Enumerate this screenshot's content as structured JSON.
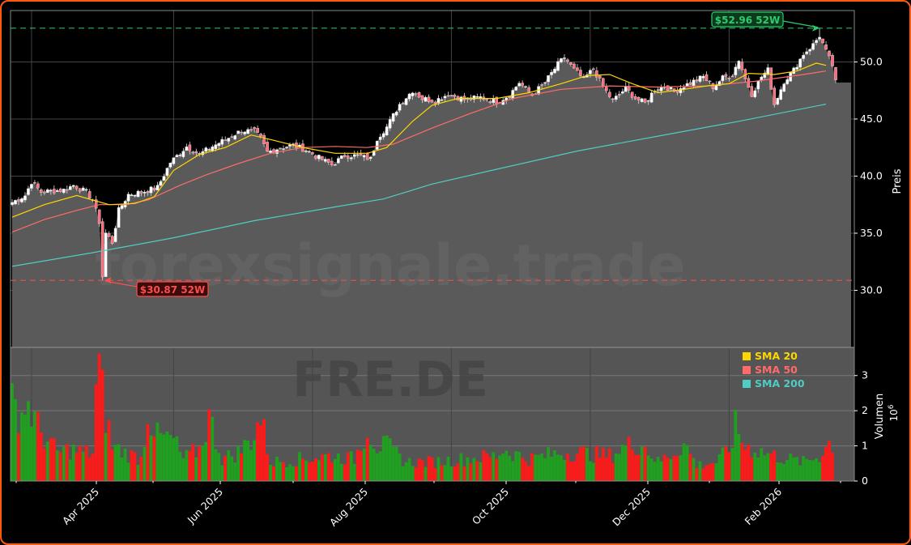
{
  "chart_data": {
    "type": "candlestick",
    "watermark": "forexsignale.trade",
    "ticker_watermark": "FRE.DE",
    "ylabel": "Preis",
    "volume_label": "Volumen",
    "volume_exponent": "10",
    "volume_exponent_power": "6",
    "price_ylim": [
      25.0,
      54.5
    ],
    "price_ticks": [
      "30.0",
      "35.0",
      "40.0",
      "45.0",
      "50.0"
    ],
    "volume_ylim": [
      0,
      3.8
    ],
    "volume_ticks": [
      "0",
      "1",
      "2",
      "3"
    ],
    "x_ticks": [
      "Apr 2025",
      "Jun 2025",
      "Aug 2025",
      "Oct 2025",
      "Dec 2025",
      "Feb 2026"
    ],
    "legend": [
      {
        "label": "SMA 20",
        "color": "#ffd700"
      },
      {
        "label": "SMA 50",
        "color": "#ff6b6b"
      },
      {
        "label": "SMA 200",
        "color": "#4ecdc4"
      }
    ],
    "annotations": {
      "high": {
        "label": "$52.96 52W",
        "value": 52.96
      },
      "low": {
        "label": "$30.87 52W",
        "value": 30.87
      }
    },
    "last_price": 48.2,
    "colors": {
      "up": "#1fa01f",
      "down": "#ff1a1a",
      "grid": "#444444",
      "area": "#5a5a5a",
      "high": "#2ecc71",
      "low": "#ff4d4d"
    },
    "grid": true,
    "legend_position": "upper right of volume panel",
    "price_anchors": [
      [
        0,
        37.7
      ],
      [
        4,
        38.3
      ],
      [
        6,
        39.5
      ],
      [
        9,
        38.6
      ],
      [
        12,
        38.7
      ],
      [
        16,
        38.8
      ],
      [
        19,
        39.2
      ],
      [
        23,
        38.6
      ],
      [
        25,
        37.9
      ],
      [
        27,
        36.0
      ],
      [
        28,
        30.9
      ],
      [
        29,
        35.0
      ],
      [
        31,
        34.2
      ],
      [
        33,
        37.0
      ],
      [
        36,
        38.4
      ],
      [
        40,
        38.6
      ],
      [
        45,
        39.0
      ],
      [
        49,
        41.2
      ],
      [
        54,
        42.6
      ],
      [
        58,
        41.9
      ],
      [
        62,
        42.6
      ],
      [
        66,
        43.2
      ],
      [
        71,
        44.0
      ],
      [
        75,
        43.9
      ],
      [
        77,
        43.3
      ],
      [
        79,
        42.1
      ],
      [
        83,
        42.5
      ],
      [
        87,
        42.7
      ],
      [
        91,
        42.3
      ],
      [
        95,
        41.6
      ],
      [
        99,
        41.0
      ],
      [
        103,
        41.8
      ],
      [
        107,
        41.8
      ],
      [
        111,
        41.5
      ],
      [
        113,
        43.3
      ],
      [
        116,
        44.3
      ],
      [
        120,
        46.3
      ],
      [
        124,
        47.5
      ],
      [
        127,
        46.8
      ],
      [
        131,
        46.6
      ],
      [
        135,
        47.2
      ],
      [
        140,
        46.7
      ],
      [
        145,
        46.9
      ],
      [
        150,
        46.5
      ],
      [
        154,
        47.1
      ],
      [
        157,
        48.2
      ],
      [
        161,
        47.1
      ],
      [
        165,
        48.2
      ],
      [
        169,
        49.8
      ],
      [
        171,
        50.4
      ],
      [
        174,
        49.3
      ],
      [
        177,
        48.5
      ],
      [
        180,
        49.4
      ],
      [
        183,
        47.8
      ],
      [
        186,
        46.6
      ],
      [
        190,
        47.7
      ],
      [
        193,
        46.8
      ],
      [
        196,
        46.4
      ],
      [
        199,
        47.6
      ],
      [
        202,
        47.9
      ],
      [
        205,
        47.4
      ],
      [
        208,
        47.9
      ],
      [
        211,
        48.3
      ],
      [
        214,
        48.7
      ],
      [
        217,
        47.8
      ],
      [
        220,
        48.6
      ],
      [
        223,
        48.9
      ],
      [
        225,
        50.2
      ],
      [
        227,
        48.5
      ],
      [
        229,
        47.2
      ],
      [
        232,
        48.7
      ],
      [
        234,
        49.3
      ],
      [
        236,
        46.3
      ],
      [
        239,
        48.3
      ],
      [
        242,
        49.3
      ],
      [
        245,
        50.7
      ],
      [
        248,
        51.5
      ],
      [
        250,
        52.3
      ],
      [
        252,
        50.9
      ],
      [
        254,
        49.7
      ],
      [
        255,
        48.2
      ]
    ],
    "sma20": [
      [
        0,
        36.4
      ],
      [
        10,
        37.5
      ],
      [
        20,
        38.3
      ],
      [
        30,
        37.5
      ],
      [
        38,
        37.6
      ],
      [
        44,
        38.2
      ],
      [
        50,
        40.5
      ],
      [
        58,
        41.9
      ],
      [
        66,
        42.5
      ],
      [
        74,
        43.6
      ],
      [
        80,
        43.2
      ],
      [
        90,
        42.5
      ],
      [
        100,
        42.0
      ],
      [
        110,
        42.0
      ],
      [
        116,
        42.5
      ],
      [
        124,
        44.8
      ],
      [
        130,
        46.2
      ],
      [
        138,
        46.8
      ],
      [
        150,
        46.8
      ],
      [
        160,
        47.3
      ],
      [
        170,
        48.1
      ],
      [
        178,
        48.8
      ],
      [
        185,
        48.9
      ],
      [
        192,
        48.1
      ],
      [
        200,
        47.3
      ],
      [
        208,
        47.6
      ],
      [
        215,
        47.9
      ],
      [
        222,
        48.1
      ],
      [
        228,
        49.0
      ],
      [
        236,
        48.9
      ],
      [
        243,
        49.2
      ],
      [
        249,
        49.9
      ],
      [
        252,
        49.7
      ]
    ],
    "sma50": [
      [
        0,
        35.1
      ],
      [
        10,
        36.2
      ],
      [
        20,
        37.0
      ],
      [
        27,
        37.5
      ],
      [
        35,
        37.5
      ],
      [
        42,
        37.9
      ],
      [
        52,
        39.2
      ],
      [
        60,
        40.1
      ],
      [
        70,
        41.1
      ],
      [
        80,
        42.0
      ],
      [
        90,
        42.5
      ],
      [
        100,
        42.6
      ],
      [
        110,
        42.5
      ],
      [
        118,
        42.8
      ],
      [
        130,
        44.2
      ],
      [
        142,
        45.5
      ],
      [
        155,
        46.8
      ],
      [
        170,
        47.6
      ],
      [
        185,
        47.9
      ],
      [
        200,
        47.8
      ],
      [
        215,
        47.9
      ],
      [
        230,
        48.3
      ],
      [
        245,
        48.9
      ],
      [
        252,
        49.2
      ]
    ],
    "sma200": [
      [
        0,
        32.1
      ],
      [
        25,
        33.3
      ],
      [
        50,
        34.6
      ],
      [
        75,
        36.1
      ],
      [
        100,
        37.3
      ],
      [
        115,
        38.0
      ],
      [
        130,
        39.3
      ],
      [
        150,
        40.6
      ],
      [
        175,
        42.2
      ],
      [
        200,
        43.5
      ],
      [
        225,
        44.8
      ],
      [
        252,
        46.3
      ]
    ],
    "volume_anchors": [
      [
        0,
        2.4
      ],
      [
        3,
        2.2
      ],
      [
        5,
        2.4
      ],
      [
        8,
        1.7
      ],
      [
        10,
        1.4
      ],
      [
        14,
        0.9
      ],
      [
        18,
        1.0
      ],
      [
        22,
        0.9
      ],
      [
        25,
        0.9
      ],
      [
        26,
        2.8
      ],
      [
        27,
        3.4
      ],
      [
        29,
        2.1
      ],
      [
        31,
        1.1
      ],
      [
        35,
        0.9
      ],
      [
        40,
        0.7
      ],
      [
        42,
        2.2
      ],
      [
        45,
        1.4
      ],
      [
        50,
        1.3
      ],
      [
        53,
        0.7
      ],
      [
        58,
        1.0
      ],
      [
        61,
        2.0
      ],
      [
        65,
        0.7
      ],
      [
        70,
        0.9
      ],
      [
        74,
        1.3
      ],
      [
        77,
        2.0
      ],
      [
        80,
        0.6
      ],
      [
        90,
        0.7
      ],
      [
        98,
        0.8
      ],
      [
        106,
        0.7
      ],
      [
        110,
        1.7
      ],
      [
        113,
        1.1
      ],
      [
        116,
        1.1
      ],
      [
        122,
        0.6
      ],
      [
        130,
        0.6
      ],
      [
        140,
        0.7
      ],
      [
        150,
        0.8
      ],
      [
        152,
        1.0
      ],
      [
        160,
        0.7
      ],
      [
        170,
        0.9
      ],
      [
        175,
        0.9
      ],
      [
        185,
        0.8
      ],
      [
        190,
        1.1
      ],
      [
        195,
        1.2
      ],
      [
        200,
        0.6
      ],
      [
        205,
        0.9
      ],
      [
        208,
        1.2
      ],
      [
        212,
        0.5
      ],
      [
        218,
        0.6
      ],
      [
        222,
        1.0
      ],
      [
        224,
        1.7
      ],
      [
        227,
        1.1
      ],
      [
        230,
        1.0
      ],
      [
        236,
        0.8
      ],
      [
        240,
        0.7
      ],
      [
        245,
        0.6
      ],
      [
        250,
        0.8
      ],
      [
        253,
        1.2
      ]
    ]
  }
}
